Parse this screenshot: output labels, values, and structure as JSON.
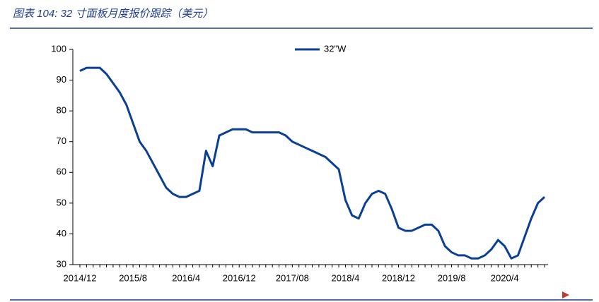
{
  "chart_data": {
    "type": "line",
    "title": "图表 104:  32 寸面板月度报价跟踪（美元）",
    "categories": [
      "2014/12",
      null,
      null,
      null,
      null,
      null,
      null,
      null,
      "2015/8",
      null,
      null,
      null,
      null,
      null,
      null,
      null,
      "2016/4",
      null,
      null,
      null,
      null,
      null,
      null,
      null,
      "2016/12",
      null,
      null,
      null,
      null,
      null,
      null,
      null,
      "2017/08",
      null,
      null,
      null,
      null,
      null,
      null,
      null,
      "2018/4",
      null,
      null,
      null,
      null,
      null,
      null,
      null,
      "2018/12",
      null,
      null,
      null,
      null,
      null,
      null,
      null,
      "2019/8",
      null,
      null,
      null,
      null,
      null,
      null,
      null,
      "2020/4",
      null,
      null,
      null,
      null,
      null,
      null
    ],
    "series": [
      {
        "name": "32\"W",
        "color": "#0b3f94",
        "values": [
          93,
          94,
          94,
          94,
          92,
          89,
          86,
          82,
          76,
          70,
          67,
          63,
          59,
          55,
          53,
          52,
          52,
          53,
          54,
          67,
          62,
          72,
          73,
          74,
          74,
          74,
          73,
          73,
          73,
          73,
          73,
          72,
          70,
          69,
          68,
          67,
          66,
          65,
          63,
          61,
          51,
          46,
          45,
          50,
          53,
          54,
          53,
          48,
          42,
          41,
          41,
          42,
          43,
          43,
          41,
          36,
          34,
          33,
          33,
          32,
          32,
          33,
          35,
          38,
          36,
          32,
          33,
          39,
          45,
          50,
          52
        ]
      }
    ],
    "ylim": [
      30,
      100
    ],
    "yticks": [
      30,
      40,
      50,
      60,
      70,
      80,
      90,
      100
    ],
    "legend": "top"
  }
}
